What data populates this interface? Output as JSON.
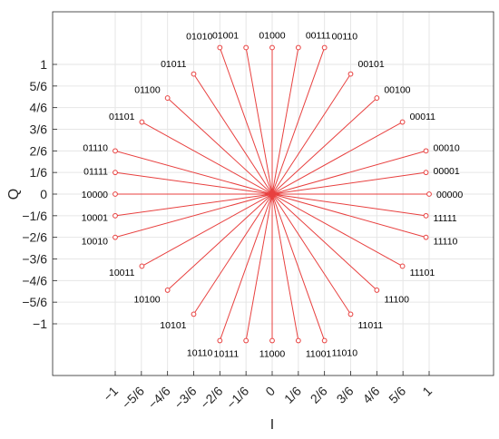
{
  "chart_data": {
    "type": "scatter",
    "title": "",
    "xlabel": "I",
    "ylabel": "Q",
    "xlim": [
      -1.2,
      1.2
    ],
    "ylim": [
      -1.4,
      1.4
    ],
    "grid": true,
    "line_color": "#e8403f",
    "marker_color": "#e8403f",
    "grid_color": "#e6e6e6",
    "axis_color": "#262626",
    "x_ticks": [
      -1,
      -0.8333,
      -0.6667,
      -0.5,
      -0.3333,
      -0.1667,
      0,
      0.1667,
      0.3333,
      0.5,
      0.6667,
      0.8333,
      1
    ],
    "x_tick_labels": [
      "−1",
      "−5/6",
      "−4/6",
      "−3/6",
      "−2/6",
      "−1/6",
      "0",
      "1/6",
      "2/6",
      "3/6",
      "4/6",
      "5/6",
      "1"
    ],
    "y_ticks": [
      1,
      0.8333,
      0.6667,
      0.5,
      0.3333,
      0.1667,
      0,
      -0.1667,
      -0.3333,
      -0.5,
      -0.6667,
      -0.8333,
      -1
    ],
    "y_tick_labels": [
      "1",
      "5/6",
      "4/6",
      "3/6",
      "2/6",
      "1/6",
      "0",
      "−1/6",
      "−2/6",
      "−3/6",
      "−4/6",
      "−5/6",
      "−1"
    ],
    "points": [
      {
        "label": "00000",
        "x": 1.0,
        "y": 0.0
      },
      {
        "label": "00001",
        "x": 0.98,
        "y": 0.1667
      },
      {
        "label": "00010",
        "x": 0.98,
        "y": 0.3333
      },
      {
        "label": "00011",
        "x": 0.83,
        "y": 0.5556
      },
      {
        "label": "00100",
        "x": 0.6667,
        "y": 0.7407
      },
      {
        "label": "00101",
        "x": 0.5,
        "y": 0.9259
      },
      {
        "label": "00110",
        "x": 0.3333,
        "y": 1.1296
      },
      {
        "label": "00111",
        "x": 0.1667,
        "y": 1.1296
      },
      {
        "label": "01000",
        "x": 0.0,
        "y": 1.1296
      },
      {
        "label": "01001",
        "x": -0.1667,
        "y": 1.1296
      },
      {
        "label": "01010",
        "x": -0.3333,
        "y": 1.1296
      },
      {
        "label": "01011",
        "x": -0.5,
        "y": 0.9259
      },
      {
        "label": "01100",
        "x": -0.6667,
        "y": 0.7407
      },
      {
        "label": "01101",
        "x": -0.83,
        "y": 0.5556
      },
      {
        "label": "01110",
        "x": -1.0,
        "y": 0.3333
      },
      {
        "label": "01111",
        "x": -1.0,
        "y": 0.1667
      },
      {
        "label": "10000",
        "x": -1.0,
        "y": 0.0
      },
      {
        "label": "10001",
        "x": -1.0,
        "y": -0.1667
      },
      {
        "label": "10010",
        "x": -1.0,
        "y": -0.3333
      },
      {
        "label": "10011",
        "x": -0.83,
        "y": -0.5556
      },
      {
        "label": "10100",
        "x": -0.6667,
        "y": -0.7407
      },
      {
        "label": "10101",
        "x": -0.5,
        "y": -0.9259
      },
      {
        "label": "10110",
        "x": -0.3333,
        "y": -1.1296
      },
      {
        "label": "10111",
        "x": -0.1667,
        "y": -1.1296
      },
      {
        "label": "11000",
        "x": 0.0,
        "y": -1.1296
      },
      {
        "label": "11001",
        "x": 0.1667,
        "y": -1.1296
      },
      {
        "label": "11010",
        "x": 0.3333,
        "y": -1.1296
      },
      {
        "label": "11011",
        "x": 0.5,
        "y": -0.9259
      },
      {
        "label": "11100",
        "x": 0.6667,
        "y": -0.7407
      },
      {
        "label": "11101",
        "x": 0.83,
        "y": -0.5556
      },
      {
        "label": "11110",
        "x": 0.98,
        "y": -0.3333
      },
      {
        "label": "11111",
        "x": 0.98,
        "y": -0.1667
      }
    ]
  }
}
